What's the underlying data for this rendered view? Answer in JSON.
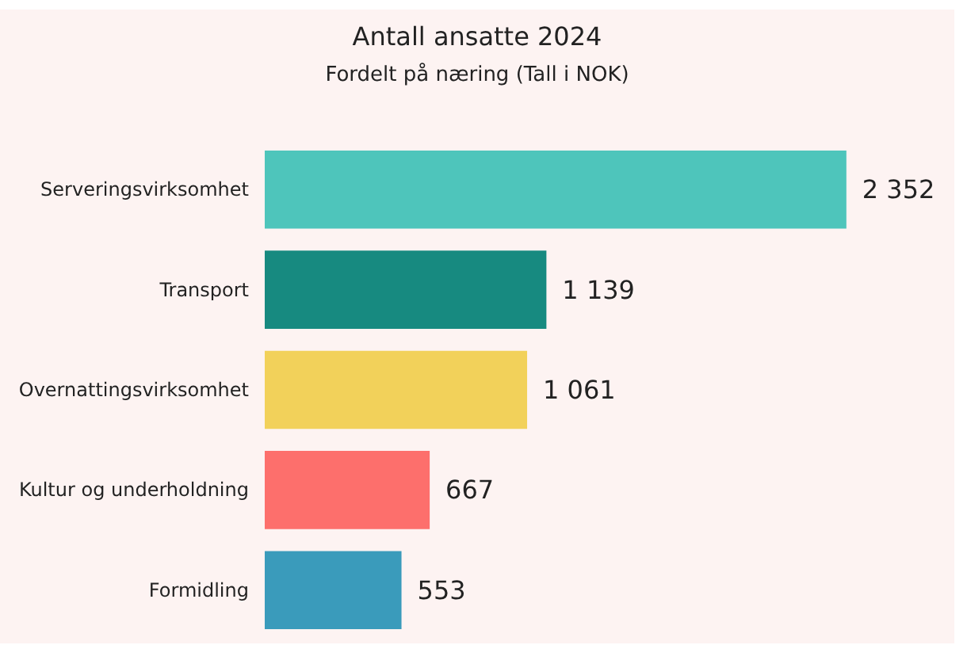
{
  "chart_data": {
    "type": "bar",
    "orientation": "horizontal",
    "title": "Antall ansatte 2024",
    "subtitle": "Fordelt på næring (Tall i NOK)",
    "categories": [
      "Serveringsvirksomhet",
      "Transport",
      "Overnattingsvirksomhet",
      "Kultur og underholdning",
      "Formidling"
    ],
    "values": [
      2352,
      1139,
      1061,
      667,
      553
    ],
    "colors": [
      "#4ec5bb",
      "#178a80",
      "#f2d15a",
      "#fd6f6c",
      "#3a9bbb"
    ],
    "value_labels": [
      "2 352",
      "1 139",
      "1 061",
      "667",
      "553"
    ]
  }
}
